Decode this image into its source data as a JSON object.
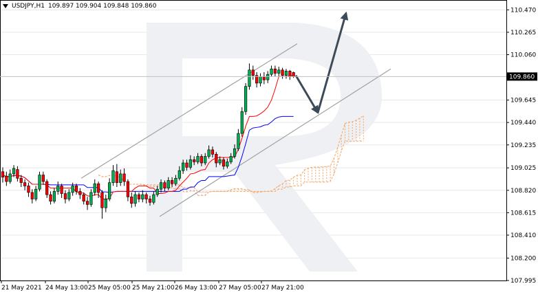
{
  "header": {
    "symbol": "USDJPY,H1",
    "ohlc": "109.897 109.904 109.848 109.860"
  },
  "chart_data": {
    "type": "candlestick",
    "symbol": "USDJPY",
    "timeframe": "H1",
    "last_price": 109.86,
    "y_ticks": [
      110.47,
      110.265,
      110.06,
      109.645,
      109.44,
      109.235,
      109.025,
      108.82,
      108.615,
      108.41,
      108.2,
      107.995
    ],
    "ylim": [
      107.995,
      110.56
    ],
    "x_labels": [
      "21 May 2021",
      "24 May 13:00",
      "25 May 05:00",
      "25 May 21:00",
      "26 May 13:00",
      "27 May 05:00",
      "27 May 21:00"
    ],
    "candles": [
      [
        108.99,
        108.94,
        109.03,
        108.89
      ],
      [
        108.95,
        108.9,
        108.99,
        108.86
      ],
      [
        108.9,
        108.97,
        109.01,
        108.88
      ],
      [
        108.97,
        109.02,
        109.05,
        108.94
      ],
      [
        109.01,
        108.93,
        109.04,
        108.9
      ],
      [
        108.93,
        108.89,
        108.96,
        108.85
      ],
      [
        108.89,
        108.86,
        108.92,
        108.82
      ],
      [
        108.86,
        108.8,
        108.89,
        108.76
      ],
      [
        108.8,
        108.74,
        108.83,
        108.7
      ],
      [
        108.74,
        108.83,
        108.86,
        108.72
      ],
      [
        108.83,
        108.96,
        108.99,
        108.81
      ],
      [
        108.96,
        108.9,
        108.99,
        108.87
      ],
      [
        108.9,
        108.78,
        108.92,
        108.75
      ],
      [
        108.78,
        108.72,
        108.81,
        108.69
      ],
      [
        108.72,
        108.81,
        108.84,
        108.7
      ],
      [
        108.81,
        108.86,
        108.9,
        108.78
      ],
      [
        108.86,
        108.79,
        108.88,
        108.75
      ],
      [
        108.79,
        108.74,
        108.82,
        108.7
      ],
      [
        108.74,
        108.8,
        108.83,
        108.72
      ],
      [
        108.8,
        108.86,
        108.89,
        108.77
      ],
      [
        108.86,
        108.81,
        108.88,
        108.78
      ],
      [
        108.81,
        108.78,
        108.84,
        108.74
      ],
      [
        108.78,
        108.72,
        108.8,
        108.69
      ],
      [
        108.72,
        108.69,
        108.76,
        108.64
      ],
      [
        108.69,
        108.8,
        108.83,
        108.67
      ],
      [
        108.8,
        108.88,
        108.92,
        108.77
      ],
      [
        108.88,
        108.8,
        108.9,
        108.75
      ],
      [
        108.8,
        108.66,
        108.82,
        108.56
      ],
      [
        108.66,
        108.74,
        108.78,
        108.62
      ],
      [
        108.74,
        108.89,
        108.93,
        108.72
      ],
      [
        108.89,
        109.0,
        109.05,
        108.86
      ],
      [
        108.99,
        108.89,
        109.06,
        108.85
      ],
      [
        108.89,
        108.97,
        109.01,
        108.86
      ],
      [
        108.97,
        108.9,
        109.02,
        108.86
      ],
      [
        108.9,
        108.76,
        108.92,
        108.72
      ],
      [
        108.76,
        108.7,
        108.8,
        108.66
      ],
      [
        108.7,
        108.78,
        108.81,
        108.67
      ],
      [
        108.78,
        108.74,
        108.8,
        108.71
      ],
      [
        108.74,
        108.78,
        108.82,
        108.71
      ],
      [
        108.78,
        108.74,
        108.8,
        108.7
      ],
      [
        108.74,
        108.71,
        108.77,
        108.68
      ],
      [
        108.71,
        108.78,
        108.81,
        108.69
      ],
      [
        108.78,
        108.83,
        108.86,
        108.76
      ],
      [
        108.83,
        108.89,
        108.92,
        108.8
      ],
      [
        108.89,
        108.84,
        108.91,
        108.81
      ],
      [
        108.84,
        108.91,
        108.94,
        108.82
      ],
      [
        108.91,
        108.88,
        108.94,
        108.85
      ],
      [
        108.88,
        108.93,
        108.96,
        108.86
      ],
      [
        108.93,
        109.0,
        109.04,
        108.91
      ],
      [
        109.0,
        109.07,
        109.1,
        108.97
      ],
      [
        109.07,
        109.03,
        109.1,
        109.0
      ],
      [
        109.03,
        109.1,
        109.14,
        109.01
      ],
      [
        109.1,
        109.08,
        109.13,
        109.05
      ],
      [
        109.08,
        109.13,
        109.16,
        109.06
      ],
      [
        109.13,
        109.07,
        109.15,
        109.04
      ],
      [
        109.07,
        109.13,
        109.16,
        109.05
      ],
      [
        109.13,
        109.19,
        109.23,
        109.11
      ],
      [
        109.19,
        109.15,
        109.22,
        109.12
      ],
      [
        109.15,
        109.07,
        109.17,
        109.03
      ],
      [
        109.07,
        109.1,
        109.13,
        109.05
      ],
      [
        109.1,
        109.04,
        109.12,
        109.01
      ],
      [
        109.04,
        109.08,
        109.11,
        109.02
      ],
      [
        109.08,
        109.13,
        109.16,
        109.06
      ],
      [
        109.13,
        109.2,
        109.24,
        109.11
      ],
      [
        109.2,
        109.34,
        109.38,
        109.18
      ],
      [
        109.34,
        109.54,
        109.58,
        109.31
      ],
      [
        109.54,
        109.77,
        109.8,
        109.51
      ],
      [
        109.77,
        109.92,
        109.98,
        109.74
      ],
      [
        109.92,
        109.87,
        109.96,
        109.83
      ],
      [
        109.87,
        109.8,
        109.9,
        109.76
      ],
      [
        109.8,
        109.86,
        109.89,
        109.77
      ],
      [
        109.86,
        109.83,
        109.9,
        109.79
      ],
      [
        109.83,
        109.88,
        109.91,
        109.8
      ],
      [
        109.88,
        109.93,
        109.96,
        109.86
      ],
      [
        109.93,
        109.89,
        109.96,
        109.86
      ],
      [
        109.89,
        109.92,
        109.95,
        109.86
      ],
      [
        109.92,
        109.87,
        109.94,
        109.84
      ],
      [
        109.87,
        109.91,
        109.93,
        109.84
      ],
      [
        109.91,
        109.86,
        109.92,
        109.83
      ],
      [
        109.897,
        109.86,
        109.904,
        109.848
      ]
    ],
    "projection": [
      [
        109.87,
        109.53
      ],
      [
        109.53,
        110.44
      ]
    ],
    "channel_upper": [
      [
        108.93,
        110.16
      ],
      [
        null,
        null
      ]
    ],
    "channel_lower": [
      [
        108.58,
        109.93
      ],
      [
        null,
        null
      ]
    ],
    "colors": {
      "bull": "#00b050",
      "bear": "#ff0000",
      "wick": "#000000",
      "tenkan": "#ff0000",
      "kijun": "#0000ff",
      "cloud": "#f4a460",
      "cloud_past": "#d8a8e0",
      "channel": "#a0a0a0",
      "arrow": "#3d4a58",
      "grid": "#e8e8e8",
      "watermark": "#eef0f3"
    }
  }
}
